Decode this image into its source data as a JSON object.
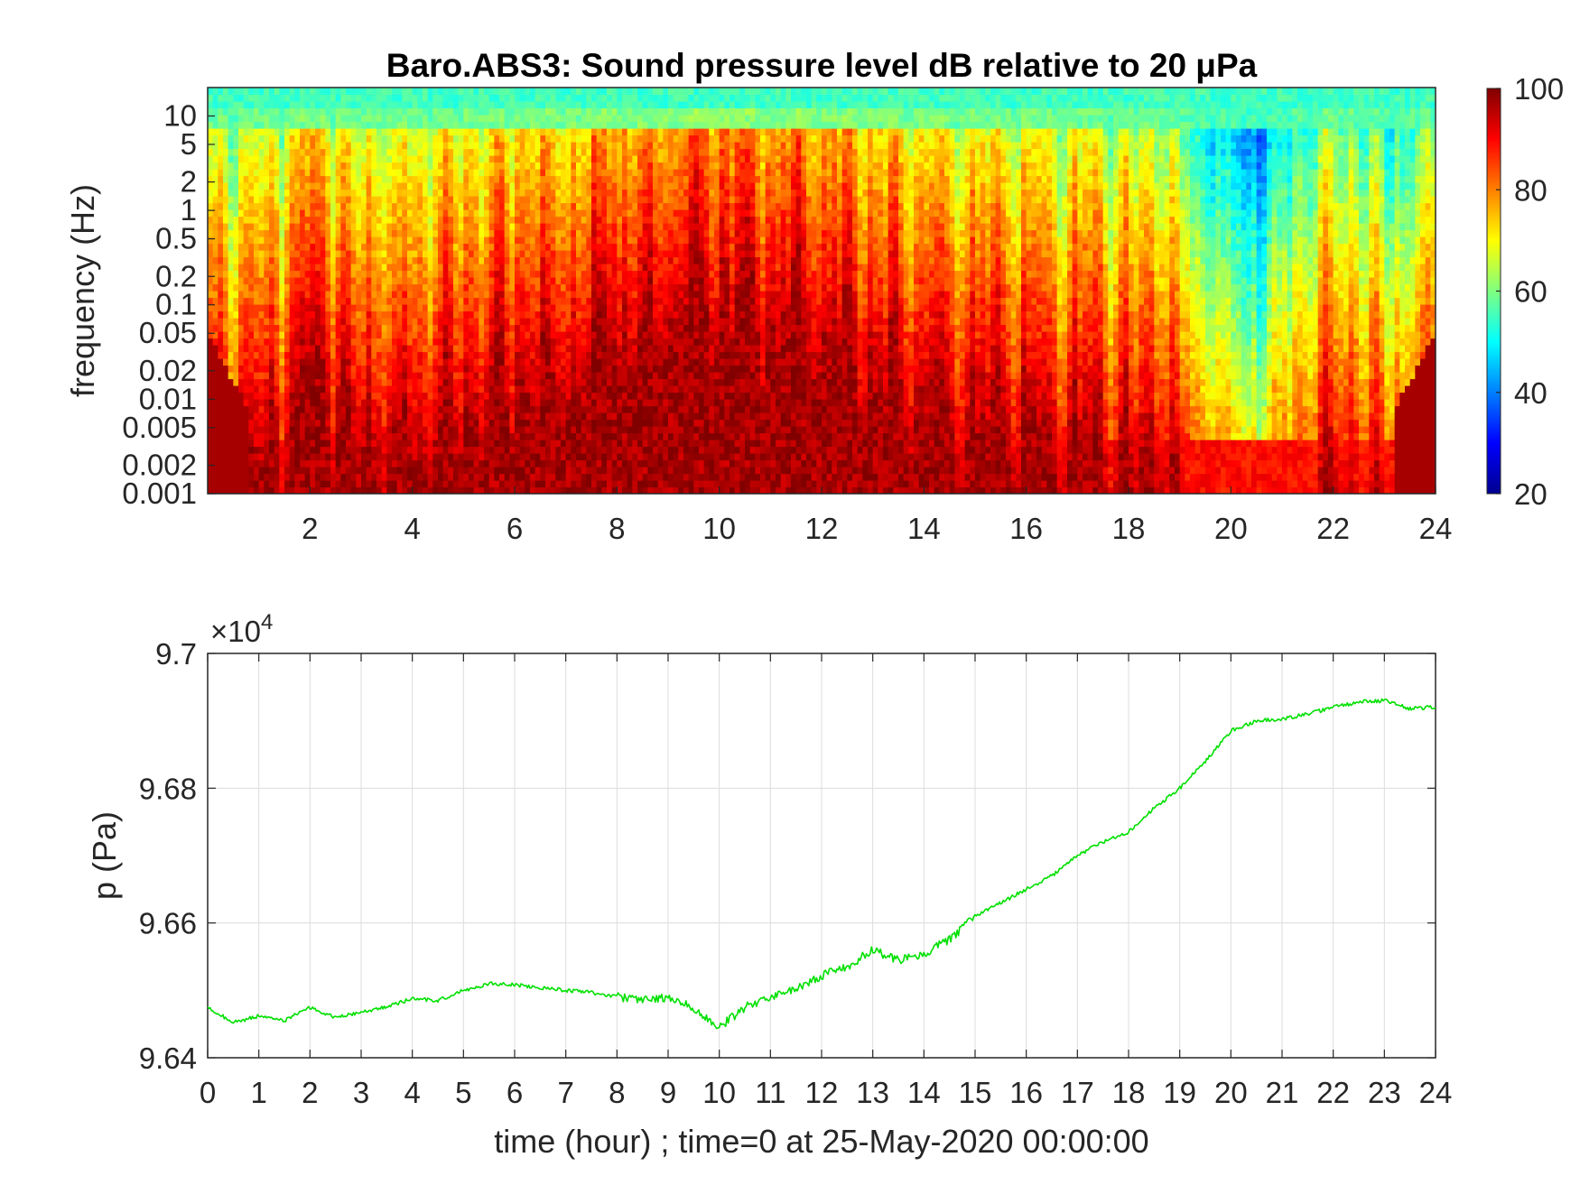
{
  "chart_data": [
    {
      "type": "heatmap",
      "title": "Baro.ABS3: Sound pressure level dB relative to 20 μPa",
      "ylabel": "frequency (Hz)",
      "y_scale": "log",
      "y_ticks": [
        "10",
        "5",
        "2",
        "1",
        "0.5",
        "0.2",
        "0.1",
        "0.05",
        "0.02",
        "0.01",
        "0.005",
        "0.002",
        "0.001"
      ],
      "y_tick_values": [
        10,
        5,
        2,
        1,
        0.5,
        0.2,
        0.1,
        0.05,
        0.02,
        0.01,
        0.005,
        0.002,
        0.001
      ],
      "x_ticks": [
        "2",
        "4",
        "6",
        "8",
        "10",
        "12",
        "14",
        "16",
        "18",
        "20",
        "22",
        "24"
      ],
      "x_tick_values": [
        2,
        4,
        6,
        8,
        10,
        12,
        14,
        16,
        18,
        20,
        22,
        24
      ],
      "xlim": [
        0,
        24
      ],
      "ylim": [
        0.001,
        20
      ],
      "colorbar": {
        "colormap": "jet",
        "range": [
          20,
          100
        ],
        "ticks": [
          "100",
          "80",
          "60",
          "40",
          "20"
        ],
        "tick_values": [
          100,
          80,
          60,
          40,
          20
        ]
      }
    },
    {
      "type": "line",
      "ylabel": "p (Pa)",
      "xlabel": "time (hour) ; time=0 at 25-May-2020 00:00:00",
      "y_exponent_label": "×10",
      "y_exponent": "4",
      "y_ticks": [
        "9.7",
        "9.68",
        "9.66",
        "9.64"
      ],
      "y_tick_values": [
        9.7,
        9.68,
        9.66,
        9.64
      ],
      "x_ticks": [
        "0",
        "1",
        "2",
        "3",
        "4",
        "5",
        "6",
        "7",
        "8",
        "9",
        "10",
        "11",
        "12",
        "13",
        "14",
        "15",
        "16",
        "17",
        "18",
        "19",
        "20",
        "21",
        "22",
        "23",
        "24"
      ],
      "xlim": [
        0,
        24
      ],
      "ylim": [
        9.64,
        9.7
      ],
      "grid": true,
      "line_color": "#00e000",
      "x": [
        0,
        0.5,
        1,
        1.5,
        2,
        2.5,
        3,
        3.5,
        4,
        4.5,
        5,
        5.5,
        6,
        6.5,
        7,
        7.5,
        8,
        8.5,
        9,
        9.5,
        10,
        10.5,
        11,
        11.5,
        12,
        12.5,
        13,
        13.5,
        14,
        14.5,
        15,
        15.5,
        16,
        16.5,
        17,
        17.5,
        18,
        18.5,
        19,
        19.5,
        20,
        20.5,
        21,
        21.5,
        22,
        22.5,
        23,
        23.5,
        24
      ],
      "y": [
        9.6475,
        9.6452,
        9.6462,
        9.6455,
        9.6475,
        9.646,
        9.6468,
        9.6475,
        9.6488,
        9.6485,
        9.65,
        9.651,
        9.6508,
        9.6504,
        9.65,
        9.6497,
        9.649,
        9.6487,
        9.649,
        9.6475,
        9.6445,
        9.6475,
        9.649,
        9.6502,
        9.6522,
        9.6535,
        9.656,
        9.6545,
        9.6555,
        9.6575,
        9.661,
        9.663,
        9.665,
        9.667,
        9.67,
        9.672,
        9.6735,
        9.677,
        9.68,
        9.684,
        9.6885,
        9.69,
        9.6903,
        9.691,
        9.692,
        9.6928,
        9.693,
        9.6918,
        9.692
      ]
    }
  ]
}
